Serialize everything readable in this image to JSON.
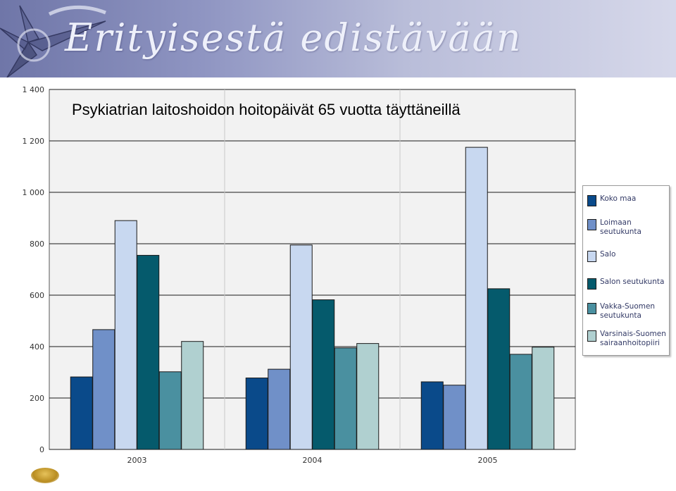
{
  "banner": {
    "title": "Erityisestä edistävään"
  },
  "chart_data": {
    "type": "bar",
    "title": "Psykiatrian laitoshoidon hoitopäivät 65 vuotta täyttäneillä",
    "categories": [
      "2003",
      "2004",
      "2005"
    ],
    "ylim": [
      0,
      1400
    ],
    "yticks": [
      0,
      200,
      400,
      600,
      800,
      1000,
      1200,
      1400
    ],
    "ytick_labels": [
      "0",
      "200",
      "400",
      "600",
      "800",
      "1 000",
      "1 200",
      "1 400"
    ],
    "grid": true,
    "legend_position": "right",
    "series": [
      {
        "name": "Koko maa",
        "color": "#0a4a8a",
        "values": [
          282,
          278,
          263
        ]
      },
      {
        "name": "Loimaan seutukunta",
        "color": "#7090c8",
        "values": [
          466,
          312,
          250
        ]
      },
      {
        "name": "Salo",
        "color": "#c8d8f0",
        "values": [
          890,
          795,
          1175
        ]
      },
      {
        "name": "Salon seutukunta",
        "color": "#055a6c",
        "values": [
          755,
          582,
          625
        ]
      },
      {
        "name": "Vakka-Suomen seutukunta",
        "color": "#4a90a0",
        "values": [
          302,
          395,
          370
        ]
      },
      {
        "name": "Varsinais-Suomen sairaanhoitopiiri",
        "color": "#b0d0d0",
        "values": [
          420,
          412,
          398
        ]
      }
    ]
  },
  "legend": {
    "items": [
      {
        "lines": [
          "Koko maa"
        ]
      },
      {
        "lines": [
          "Loimaan",
          "seutukunta"
        ]
      },
      {
        "lines": [
          "Salo"
        ]
      },
      {
        "lines": [
          "Salon seutukunta"
        ]
      },
      {
        "lines": [
          "Vakka-Suomen",
          "seutukunta"
        ]
      },
      {
        "lines": [
          "Varsinais-Suomen",
          "sairaanhoitopiiri"
        ]
      }
    ]
  }
}
